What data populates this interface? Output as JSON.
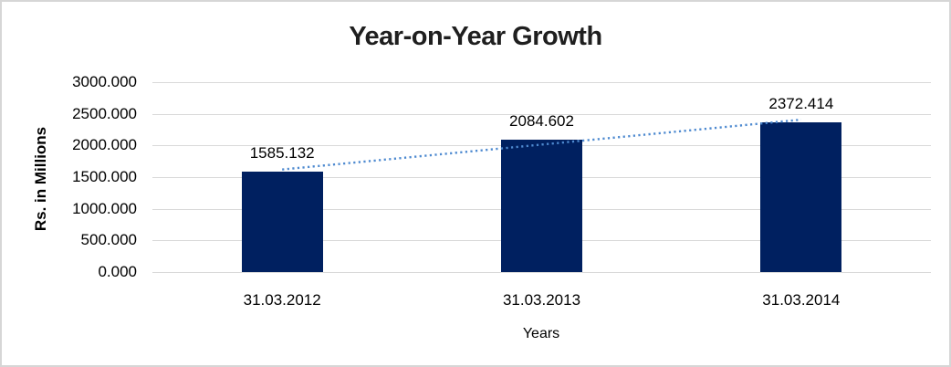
{
  "window": {
    "background_color": "#ffffff",
    "frame_border_color": "#d6d6d6"
  },
  "chart_data": {
    "type": "bar",
    "title": "Year-on-Year Growth",
    "categories": [
      "31.03.2012",
      "31.03.2013",
      "31.03.2014"
    ],
    "values": [
      1585.132,
      2084.602,
      2372.414
    ],
    "data_labels": [
      "1585.132",
      "2084.602",
      "2372.414"
    ],
    "xlabel": "Years",
    "ylabel": "Rs. in Millions",
    "ylim": [
      0,
      3000
    ],
    "ytick_step": 500,
    "ytick_labels": [
      "0.000",
      "500.000",
      "1000.000",
      "1500.000",
      "2000.000",
      "2500.000",
      "3000.000"
    ],
    "grid": true,
    "legend_position": "none",
    "bar_color": "#002060",
    "gridline_color": "#d9d9d9",
    "trendline": {
      "type": "linear",
      "style": "dotted",
      "color": "#4e8ad0"
    }
  }
}
